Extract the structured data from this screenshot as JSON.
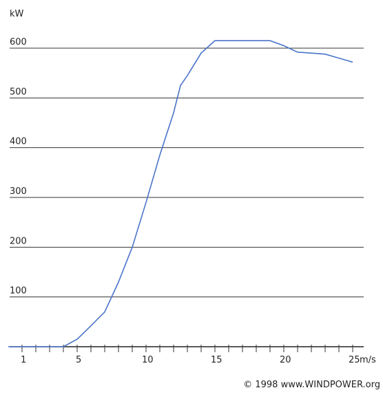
{
  "chart_data": {
    "type": "line",
    "ylabel": "kW",
    "xunit": "m/s",
    "xlim": [
      0,
      26
    ],
    "ylim": [
      0,
      620
    ],
    "yticks": [
      100,
      200,
      300,
      400,
      500,
      600
    ],
    "xticks": [
      {
        "v": 1,
        "label": "1"
      },
      {
        "v": 5,
        "label": "5"
      },
      {
        "v": 10,
        "label": "10"
      },
      {
        "v": 15,
        "label": "15"
      },
      {
        "v": 20,
        "label": "20"
      },
      {
        "v": 25,
        "label": "25"
      }
    ],
    "grid": "horizontal",
    "line_color": "#4a74c9",
    "series": [
      {
        "x": [
          0,
          4,
          5,
          6,
          7,
          8,
          9,
          10,
          11,
          12,
          12.5,
          13,
          14,
          15,
          16,
          17,
          18,
          19,
          20,
          21,
          22,
          23,
          24,
          25
        ],
        "y": [
          0,
          0,
          15,
          42,
          70,
          130,
          200,
          290,
          385,
          470,
          525,
          545,
          590,
          615,
          615,
          615,
          615,
          615,
          605,
          592,
          590,
          588,
          580,
          572
        ]
      }
    ]
  },
  "credit": "© 1998 www.WINDPOWER.org"
}
